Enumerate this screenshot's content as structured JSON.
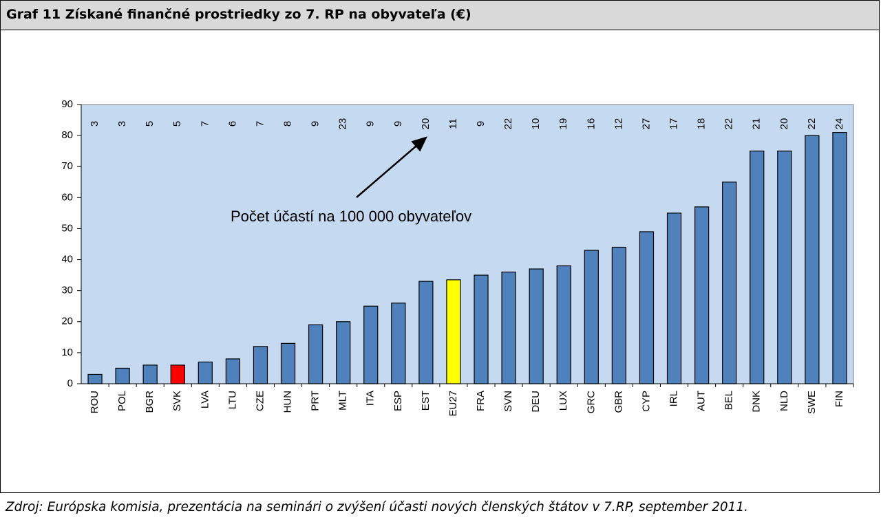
{
  "chart_data": {
    "type": "bar",
    "title": "Graf 11 Získané finančné prostriedky zo 7. RP na obyvateľa (€)",
    "categories": [
      "ROU",
      "POL",
      "BGR",
      "SVK",
      "LVA",
      "LTU",
      "CZE",
      "HUN",
      "PRT",
      "MLT",
      "ITA",
      "ESP",
      "EST",
      "EU27",
      "FRA",
      "SVN",
      "DEU",
      "LUX",
      "GRC",
      "GBR",
      "CYP",
      "IRL",
      "AUT",
      "BEL",
      "DNK",
      "NLD",
      "SWE",
      "FIN"
    ],
    "values": [
      3,
      5,
      6,
      6,
      7,
      8,
      12,
      13,
      19,
      20,
      25,
      26,
      33,
      33.5,
      35,
      36,
      37,
      38,
      43,
      44,
      49,
      55,
      57,
      65,
      75,
      75,
      80,
      81
    ],
    "colors": [
      "#4f81bd",
      "#4f81bd",
      "#4f81bd",
      "#ff0000",
      "#4f81bd",
      "#4f81bd",
      "#4f81bd",
      "#4f81bd",
      "#4f81bd",
      "#4f81bd",
      "#4f81bd",
      "#4f81bd",
      "#4f81bd",
      "#ffff00",
      "#4f81bd",
      "#4f81bd",
      "#4f81bd",
      "#4f81bd",
      "#4f81bd",
      "#4f81bd",
      "#4f81bd",
      "#4f81bd",
      "#4f81bd",
      "#4f81bd",
      "#4f81bd",
      "#4f81bd",
      "#4f81bd",
      "#4f81bd"
    ],
    "annotation": {
      "text": "Počet účastí  na 100 000 obyvateľov",
      "counts": [
        3,
        3,
        5,
        5,
        7,
        6,
        7,
        8,
        9,
        23,
        9,
        9,
        20,
        11,
        9,
        22,
        10,
        19,
        16,
        12,
        27,
        17,
        18,
        22,
        21,
        20,
        22,
        24
      ]
    },
    "ylim": [
      0,
      90
    ],
    "yticks": [
      0,
      10,
      20,
      30,
      40,
      50,
      60,
      70,
      80,
      90
    ],
    "grid": false,
    "plot_background": "#c5d9f1",
    "source": "Zdroj: Európska komisia, prezentácia na seminári o zvýšení účasti nových členských štátov v 7.RP, september 2011."
  }
}
